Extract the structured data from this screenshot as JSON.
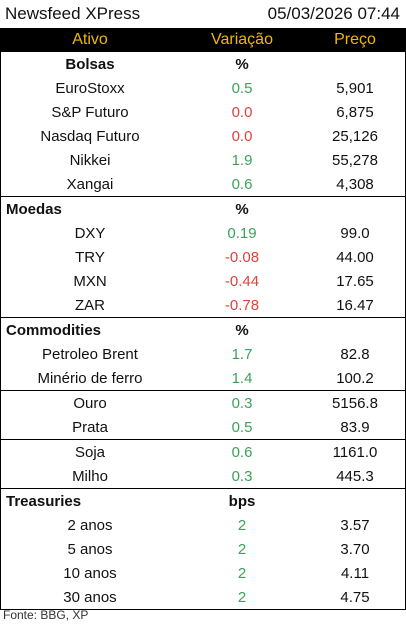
{
  "header": {
    "title": "Newsfeed XPress",
    "datetime": "05/03/2026 07:44"
  },
  "columns": {
    "asset": "Ativo",
    "change": "Variação",
    "price": "Preço"
  },
  "sections": {
    "bolsas": {
      "name": "Bolsas",
      "unit": "%",
      "rows": [
        {
          "name": "EuroStoxx",
          "change": "0.5",
          "price": "5,901",
          "dir": "pos"
        },
        {
          "name": "S&P Futuro",
          "change": "0.0",
          "price": "6,875",
          "dir": "neg"
        },
        {
          "name": "Nasdaq Futuro",
          "change": "0.0",
          "price": "25,126",
          "dir": "neg"
        },
        {
          "name": "Nikkei",
          "change": "1.9",
          "price": "55,278",
          "dir": "pos"
        },
        {
          "name": "Xangai",
          "change": "0.6",
          "price": "4,308",
          "dir": "pos"
        }
      ]
    },
    "moedas": {
      "name": "Moedas",
      "unit": "%",
      "rows": [
        {
          "name": "DXY",
          "change": "0.19",
          "price": "99.0",
          "dir": "pos"
        },
        {
          "name": "TRY",
          "change": "-0.08",
          "price": "44.00",
          "dir": "neg"
        },
        {
          "name": "MXN",
          "change": "-0.44",
          "price": "17.65",
          "dir": "neg"
        },
        {
          "name": "ZAR",
          "change": "-0.78",
          "price": "16.47",
          "dir": "neg"
        }
      ]
    },
    "commodities": {
      "name": "Commodities",
      "unit": "%",
      "rows": [
        {
          "name": "Petroleo Brent",
          "change": "1.7",
          "price": "82.8",
          "dir": "pos"
        },
        {
          "name": "Minério de ferro",
          "change": "1.4",
          "price": "100.2",
          "dir": "pos"
        },
        {
          "name": "Ouro",
          "change": "0.3",
          "price": "5156.8",
          "dir": "pos"
        },
        {
          "name": "Prata",
          "change": "0.5",
          "price": "83.9",
          "dir": "pos"
        },
        {
          "name": "Soja",
          "change": "0.6",
          "price": "1161.0",
          "dir": "pos"
        },
        {
          "name": "Milho",
          "change": "0.3",
          "price": "445.3",
          "dir": "pos"
        }
      ]
    },
    "treasuries": {
      "name": "Treasuries",
      "unit": "bps",
      "rows": [
        {
          "name": "2 anos",
          "change": "2",
          "price": "3.57",
          "dir": "pos"
        },
        {
          "name": "5 anos",
          "change": "2",
          "price": "3.70",
          "dir": "pos"
        },
        {
          "name": "10 anos",
          "change": "2",
          "price": "4.11",
          "dir": "pos"
        },
        {
          "name": "30 anos",
          "change": "2",
          "price": "4.75",
          "dir": "pos"
        }
      ]
    }
  },
  "footer": {
    "source": "Fonte: BBG, XP"
  },
  "colors": {
    "header_bg": "#000000",
    "header_text": "#f2b705",
    "positive": "#3aa35a",
    "negative": "#e0433a"
  }
}
